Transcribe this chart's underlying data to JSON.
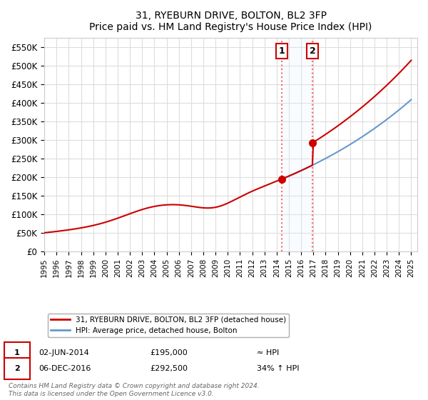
{
  "title": "31, RYEBURN DRIVE, BOLTON, BL2 3FP",
  "subtitle": "Price paid vs. HM Land Registry's House Price Index (HPI)",
  "ylabel_ticks": [
    "£0",
    "£50K",
    "£100K",
    "£150K",
    "£200K",
    "£250K",
    "£300K",
    "£350K",
    "£400K",
    "£450K",
    "£500K",
    "£550K"
  ],
  "ytick_values": [
    0,
    50000,
    100000,
    150000,
    200000,
    250000,
    300000,
    350000,
    400000,
    450000,
    500000,
    550000
  ],
  "ylim": [
    0,
    575000
  ],
  "xlim_start": 1995.0,
  "xlim_end": 2025.5,
  "purchase1": {
    "date_num": 2014.42,
    "price": 195000,
    "label": "1",
    "date_str": "02-JUN-2014",
    "price_str": "£195,000",
    "vs_hpi": "≈ HPI"
  },
  "purchase2": {
    "date_num": 2016.92,
    "price": 292500,
    "label": "2",
    "date_str": "06-DEC-2016",
    "price_str": "£292,500",
    "vs_hpi": "34% ↑ HPI"
  },
  "legend_line1": "31, RYEBURN DRIVE, BOLTON, BL2 3FP (detached house)",
  "legend_line2": "HPI: Average price, detached house, Bolton",
  "footnote": "Contains HM Land Registry data © Crown copyright and database right 2024.\nThis data is licensed under the Open Government Licence v3.0.",
  "line_color_property": "#cc0000",
  "line_color_hpi": "#6699cc",
  "marker_color": "#cc0000",
  "shaded_color": "#ddeeff",
  "vline_color": "#ff6666",
  "box_color": "#cc0000"
}
